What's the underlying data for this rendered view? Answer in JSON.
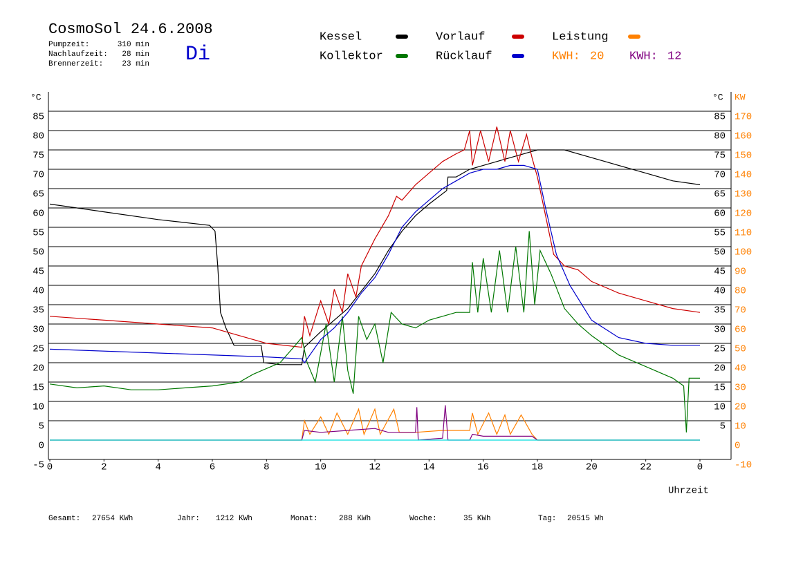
{
  "chart_data": {
    "type": "line",
    "title": "CosmoSol 24.6.2008",
    "weekday": "Di",
    "stats": [
      [
        "Pumpzeit:",
        "310 min"
      ],
      [
        "Nachlaufzeit:",
        "28 min"
      ],
      [
        "Brennerzeit:",
        "23 min"
      ]
    ],
    "x_label": "Uhrzeit",
    "y_unit": "°C",
    "y2_unit": "KW",
    "xlim": [
      0,
      24
    ],
    "xticks": [
      0,
      2,
      4,
      6,
      8,
      10,
      12,
      14,
      16,
      18,
      20,
      22,
      {
        "value": 24,
        "label": "0"
      }
    ],
    "ylim": [
      -5,
      85
    ],
    "yticks": [
      -5,
      0,
      5,
      10,
      15,
      20,
      25,
      30,
      35,
      40,
      45,
      50,
      55,
      60,
      65,
      70,
      75,
      80,
      85
    ],
    "y2lim": [
      -10,
      170
    ],
    "y2ticks": [
      -10,
      0,
      10,
      20,
      30,
      40,
      50,
      60,
      70,
      80,
      90,
      100,
      110,
      120,
      130,
      140,
      150,
      160,
      170
    ],
    "grid": true,
    "series": [
      {
        "name": "Kessel",
        "color": "#000000",
        "x": [
          0,
          2,
          4,
          5.9,
          6.1,
          6.2,
          6.3,
          6.5,
          6.8,
          7.8,
          7.9,
          8.5,
          9.3,
          9.4,
          10,
          11,
          12,
          12.5,
          13,
          13.5,
          14,
          14.65,
          14.7,
          15,
          15.5,
          16,
          17,
          18,
          19,
          20,
          22,
          23,
          24
        ],
        "values": [
          61,
          59,
          57,
          55.5,
          54,
          45,
          33,
          29,
          24.5,
          24.5,
          20,
          19.5,
          19.5,
          24,
          28,
          34,
          43,
          49,
          54,
          58,
          61,
          64.5,
          68,
          68,
          70,
          71,
          73,
          75,
          75,
          73,
          69,
          67,
          66
        ]
      },
      {
        "name": "Vorlauf",
        "color": "#cc0000",
        "x": [
          0,
          2,
          4,
          6,
          7,
          8,
          9.3,
          9.4,
          9.6,
          10,
          10.3,
          10.5,
          10.8,
          11,
          11.3,
          11.5,
          12,
          12.5,
          12.8,
          13,
          13.5,
          14,
          14.5,
          15,
          15.3,
          15.5,
          15.6,
          15.9,
          16.2,
          16.5,
          16.8,
          17,
          17.3,
          17.6,
          17.8,
          18,
          18.3,
          18.6,
          19,
          19.5,
          20,
          21,
          22,
          23,
          24
        ],
        "values": [
          32,
          31,
          30,
          29,
          27,
          25,
          24,
          32,
          27,
          36,
          30,
          39,
          33,
          43,
          37,
          45,
          52,
          58,
          63,
          62,
          66,
          69,
          72,
          74,
          75,
          80,
          71,
          80,
          72,
          81,
          72,
          80,
          72,
          79,
          73,
          68,
          58,
          48,
          45,
          44,
          41,
          38,
          36,
          34,
          33
        ]
      },
      {
        "name": "Leistung",
        "color": "#ff8000",
        "axis": "y2",
        "x": [
          0,
          9.3,
          9.4,
          9.6,
          10,
          10.3,
          10.6,
          11,
          11.4,
          11.6,
          12,
          12.2,
          12.7,
          12.9,
          13.5,
          14.5,
          15.5,
          15.6,
          15.8,
          16.2,
          16.5,
          16.8,
          17,
          17.4,
          17.8,
          18,
          24
        ],
        "values": [
          0,
          0,
          10,
          3,
          12,
          3,
          14,
          3,
          16,
          3,
          16,
          3,
          16,
          4,
          4,
          5,
          5,
          14,
          3,
          14,
          3,
          13,
          3,
          13,
          3,
          0,
          0
        ]
      },
      {
        "name": "Kollektor",
        "color": "#007700",
        "x": [
          0,
          1,
          2,
          3,
          4,
          5,
          6,
          7,
          7.5,
          8,
          8.5,
          9,
          9.3,
          9.5,
          9.8,
          10.2,
          10.5,
          10.8,
          11,
          11.2,
          11.4,
          11.7,
          12,
          12.3,
          12.6,
          13,
          13.5,
          14,
          15,
          15.5,
          15.6,
          15.8,
          16,
          16.3,
          16.6,
          16.9,
          17.2,
          17.5,
          17.7,
          17.9,
          18.1,
          18.5,
          19,
          19.5,
          20,
          21,
          22,
          23,
          23.4,
          23.5,
          23.6,
          24
        ],
        "values": [
          14.5,
          13.5,
          14,
          13,
          13,
          13.5,
          14,
          15,
          17,
          18.5,
          20,
          24,
          26.5,
          20,
          15,
          30,
          15,
          32,
          18,
          12,
          32,
          26,
          30,
          20,
          33,
          30,
          29,
          31,
          33,
          33,
          46,
          33,
          47,
          33,
          49,
          33,
          50,
          33,
          54,
          35,
          49,
          43,
          34,
          30,
          27,
          22,
          19,
          16,
          14,
          2,
          16,
          16
        ]
      },
      {
        "name": "Rücklauf",
        "color": "#0000cc",
        "x": [
          0,
          4,
          8,
          9.3,
          9.4,
          10,
          10.5,
          11,
          11.5,
          12,
          12.5,
          13,
          13.5,
          14,
          14.5,
          15,
          15.5,
          16,
          16.5,
          17,
          17.5,
          18,
          18.3,
          18.7,
          19.2,
          20,
          21,
          22,
          23,
          24
        ],
        "values": [
          23.5,
          22.5,
          21.5,
          21,
          20,
          26,
          29,
          33,
          38,
          42,
          48,
          55,
          59,
          62,
          65,
          67,
          69,
          70,
          70,
          71,
          71,
          70,
          60,
          48,
          40,
          31,
          26.5,
          25,
          24.5,
          24.5
        ]
      },
      {
        "color": "#800080",
        "axis": "y2",
        "x": [
          0,
          9.3,
          9.4,
          10,
          11,
          12,
          12.5,
          13,
          13.5,
          13.55,
          13.6,
          14.5,
          14.6,
          14.7,
          15.5,
          15.6,
          16,
          17,
          17.8,
          18,
          24
        ],
        "values": [
          0,
          0,
          5,
          4,
          5,
          6,
          4,
          4,
          4,
          17,
          0,
          1,
          18,
          0,
          0,
          3,
          2,
          2,
          2,
          0,
          0
        ]
      },
      {
        "color": "#00dddd",
        "x": [
          0,
          24
        ],
        "values": [
          0,
          0
        ]
      }
    ],
    "energy": [
      {
        "label": "KWH:",
        "value": 20,
        "color": "#ff8000"
      },
      {
        "label": "KWH:",
        "value": 12,
        "color": "#800080"
      }
    ],
    "totals": [
      [
        "Gesamt:",
        "27654 KWh"
      ],
      [
        "Jahr:",
        "1212 KWh"
      ],
      [
        "Monat:",
        "288 KWh"
      ],
      [
        "Woche:",
        "35 KWh"
      ],
      [
        "Tag:",
        "20515 Wh"
      ]
    ]
  }
}
